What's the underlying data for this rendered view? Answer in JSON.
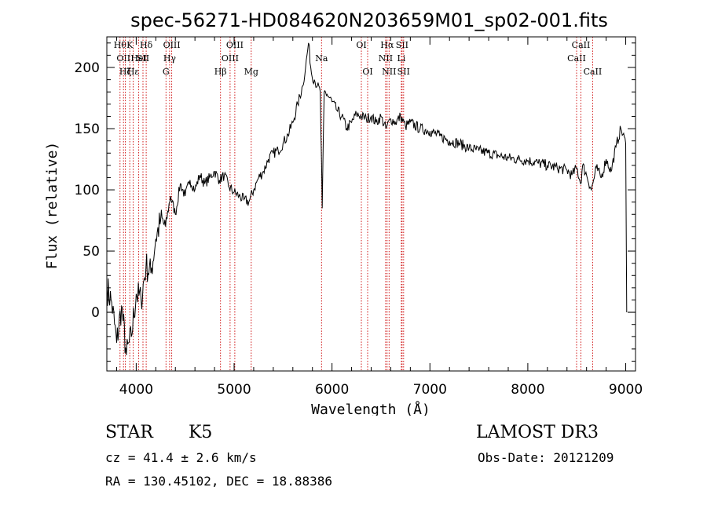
{
  "chart_data": {
    "type": "line",
    "title": "spec-56271-HD084620N203659M01_sp02-001.fits",
    "xlabel": "Wavelength (Å)",
    "ylabel": "Flux (relative)",
    "xlim": [
      3700,
      9100
    ],
    "ylim": [
      -48,
      225
    ],
    "xticks": [
      4000,
      5000,
      6000,
      7000,
      8000,
      9000
    ],
    "yticks": [
      0,
      50,
      100,
      150,
      200
    ],
    "grid": false,
    "series": [
      {
        "name": "spectrum",
        "x": [
          3700,
          3750,
          3800,
          3850,
          3900,
          3950,
          4000,
          4050,
          4100,
          4150,
          4200,
          4250,
          4300,
          4350,
          4400,
          4450,
          4500,
          4550,
          4600,
          4650,
          4700,
          4750,
          4800,
          4850,
          4900,
          4950,
          5000,
          5050,
          5100,
          5150,
          5200,
          5250,
          5300,
          5350,
          5400,
          5450,
          5500,
          5550,
          5600,
          5650,
          5700,
          5730,
          5760,
          5790,
          5820,
          5850,
          5880,
          5900,
          5920,
          5950,
          6000,
          6050,
          6100,
          6150,
          6200,
          6250,
          6300,
          6350,
          6400,
          6450,
          6500,
          6550,
          6600,
          6650,
          6700,
          6750,
          6800,
          6900,
          7000,
          7100,
          7200,
          7300,
          7400,
          7500,
          7600,
          7700,
          7800,
          7900,
          8000,
          8100,
          8200,
          8300,
          8400,
          8450,
          8500,
          8540,
          8560,
          8600,
          8650,
          8700,
          8750,
          8800,
          8850,
          8900,
          8950,
          9000,
          9010
        ],
        "values": [
          20,
          8,
          -25,
          5,
          -35,
          -20,
          15,
          10,
          38,
          32,
          60,
          75,
          70,
          95,
          80,
          105,
          95,
          108,
          100,
          112,
          105,
          110,
          115,
          108,
          112,
          102,
          98,
          95,
          92,
          90,
          100,
          110,
          115,
          125,
          130,
          132,
          138,
          145,
          155,
          170,
          185,
          200,
          220,
          195,
          190,
          185,
          180,
          85,
          180,
          178,
          172,
          165,
          160,
          150,
          155,
          162,
          160,
          158,
          160,
          155,
          160,
          150,
          158,
          155,
          160,
          152,
          155,
          150,
          148,
          144,
          140,
          138,
          134,
          132,
          130,
          128,
          126,
          125,
          124,
          122,
          120,
          118,
          116,
          112,
          118,
          105,
          120,
          112,
          100,
          118,
          110,
          125,
          115,
          135,
          150,
          138,
          0
        ]
      }
    ],
    "line_markers": [
      {
        "wave": 3835,
        "label": "Hθ",
        "row": 1
      },
      {
        "wave": 3870,
        "label": "OII",
        "row": 2
      },
      {
        "wave": 3889,
        "label": "Hζ",
        "row": 3
      },
      {
        "wave": 3934,
        "label": "K",
        "row": 1
      },
      {
        "wave": 3969,
        "label": "Hε",
        "row": 3
      },
      {
        "wave": 4026,
        "label": "HeI",
        "row": 2
      },
      {
        "wave": 4069,
        "label": "SII",
        "row": 2
      },
      {
        "wave": 4102,
        "label": "Hδ",
        "row": 1
      },
      {
        "wave": 4304,
        "label": "G",
        "row": 3
      },
      {
        "wave": 4341,
        "label": "Hγ",
        "row": 2
      },
      {
        "wave": 4363,
        "label": "OIII",
        "row": 1
      },
      {
        "wave": 4861,
        "label": "Hβ",
        "row": 3
      },
      {
        "wave": 4959,
        "label": "OIII",
        "row": 2
      },
      {
        "wave": 5007,
        "label": "OIII",
        "row": 1
      },
      {
        "wave": 5175,
        "label": "Mg",
        "row": 3
      },
      {
        "wave": 5893,
        "label": "Na",
        "row": 2
      },
      {
        "wave": 6300,
        "label": "OI",
        "row": 1
      },
      {
        "wave": 6364,
        "label": "OI",
        "row": 3
      },
      {
        "wave": 6548,
        "label": "NII",
        "row": 2
      },
      {
        "wave": 6563,
        "label": "Hα",
        "row": 1
      },
      {
        "wave": 6583,
        "label": "NII",
        "row": 3
      },
      {
        "wave": 6708,
        "label": "Li",
        "row": 2
      },
      {
        "wave": 6716,
        "label": "SII",
        "row": 1
      },
      {
        "wave": 6731,
        "label": "SII",
        "row": 3
      },
      {
        "wave": 8498,
        "label": "CaII",
        "row": 2
      },
      {
        "wave": 8542,
        "label": "CaII",
        "row": 1
      },
      {
        "wave": 8662,
        "label": "CaII",
        "row": 3
      }
    ],
    "colors": {
      "spectrum": "#000000",
      "marker": "#cc0000",
      "axes": "#000000"
    }
  },
  "info": {
    "class": "STAR",
    "subclass": "K5",
    "survey": "LAMOST DR3",
    "cz": "cz = 41.4 ± 2.6 km/s",
    "obs_date": "Obs-Date: 20121209",
    "radec": "RA = 130.45102, DEC =  18.88386"
  }
}
